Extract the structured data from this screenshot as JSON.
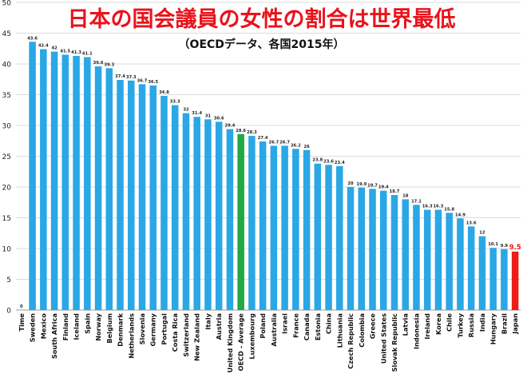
{
  "title": "日本の国会議員の女性の割合は世界最低",
  "subtitle": "（OECDデータ、各国2015年）",
  "chart_data": {
    "type": "bar",
    "ylim": [
      0,
      50
    ],
    "yticks": [
      0,
      5,
      10,
      15,
      20,
      25,
      30,
      35,
      40,
      45,
      50
    ],
    "grid": true,
    "colors": {
      "default": "#2aa7e6",
      "oecd": "#22a845",
      "japan": "#ee1b1b"
    },
    "categories": [
      "Time",
      "Sweden",
      "Mexico",
      "South Africa",
      "Finland",
      "Iceland",
      "Spain",
      "Norway",
      "Belgium",
      "Denmark",
      "Netherlands",
      "Slovenia",
      "Germany",
      "Portugal",
      "Costa Rica",
      "Switzerland",
      "New Zealand",
      "Italy",
      "Austria",
      "United Kingdom",
      "OECD - Average",
      "Luxembourg",
      "Poland",
      "Australia",
      "Israel",
      "France",
      "Canada",
      "Estonia",
      "China",
      "Lithuania",
      "Czech Republic",
      "Colombia",
      "Greece",
      "United States",
      "Slovak Republic",
      "Latvia",
      "Indonesia",
      "Ireland",
      "Korea",
      "Chile",
      "Turkey",
      "Russia",
      "India",
      "Hungary",
      "Brazil",
      "Japan"
    ],
    "values": [
      0,
      43.6,
      42.4,
      42,
      41.5,
      41.3,
      41.1,
      39.6,
      39.3,
      37.4,
      37.3,
      36.7,
      36.5,
      34.8,
      33.3,
      32,
      31.4,
      31,
      30.6,
      29.4,
      28.6,
      28.3,
      27.4,
      26.7,
      26.7,
      26.2,
      26,
      23.8,
      23.6,
      23.4,
      20,
      19.9,
      19.7,
      19.4,
      18.7,
      18,
      17.1,
      16.3,
      16.3,
      15.8,
      14.9,
      13.6,
      12,
      10.1,
      9.9,
      9.5
    ],
    "value_labels": [
      "0",
      "43.6",
      "42.4",
      "42",
      "41.5",
      "41.3",
      "41.1",
      "39.6",
      "39.3",
      "37.4",
      "37.3",
      "36.7",
      "36.5",
      "34.8",
      "33.3",
      "32",
      "31.4",
      "31",
      "30.6",
      "29.4",
      "28.6",
      "28.3",
      "27.4",
      "26.7",
      "26.7",
      "26.2",
      "26",
      "23.8",
      "23.6",
      "23.4",
      "20",
      "19.9",
      "19.7",
      "19.4",
      "18.7",
      "18",
      "17.1",
      "16.3",
      "16.3",
      "15.8",
      "14.9",
      "13.6",
      "12",
      "10.1",
      "9.9",
      "9.5"
    ]
  }
}
